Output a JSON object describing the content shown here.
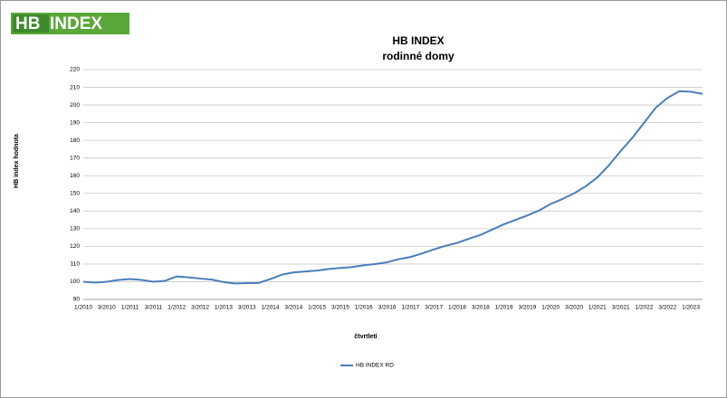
{
  "logo": {
    "left": "HB",
    "right": "INDEX"
  },
  "chart_data": {
    "type": "line",
    "title": "HB INDEX",
    "subtitle": "rodinné domy",
    "y_label": "HB index hodnota",
    "x_label": "čtvrtletí",
    "categories": [
      "1/2010",
      null,
      "3/2010",
      null,
      "1/2011",
      null,
      "3/2011",
      null,
      "1/2012",
      null,
      "3/2012",
      null,
      "1/2013",
      null,
      "3/2013",
      null,
      "1/2014",
      null,
      "3/2014",
      null,
      "1/2015",
      null,
      "3/2015",
      null,
      "1/2016",
      null,
      "3/2016",
      null,
      "1/2017",
      null,
      "3/2017",
      null,
      "1/2018",
      null,
      "3/2018",
      null,
      "1/2019",
      null,
      "3/2019",
      null,
      "1/2020",
      null,
      "3/2020",
      null,
      "1/2021",
      null,
      "3/2021",
      null,
      "1/2022",
      null,
      "3/2022",
      null,
      "1/2023",
      null
    ],
    "series": [
      {
        "name": "HB INDEX RD",
        "color": "#4a7ebb",
        "values": [
          100,
          99.5,
          100,
          101,
          101.5,
          101,
          100,
          100.5,
          103,
          102.5,
          101.8,
          101.2,
          99.8,
          99,
          99.2,
          99.3,
          101.5,
          104,
          105.3,
          105.8,
          106.3,
          107.2,
          107.8,
          108.3,
          109.3,
          110,
          111,
          112.8,
          114,
          116,
          118.3,
          120.3,
          122,
          124.3,
          126.5,
          129.5,
          132.5,
          135,
          137.5,
          140.3,
          144,
          146.8,
          150,
          154,
          159,
          166,
          174,
          181.5,
          190,
          198.5,
          204,
          207.8,
          207.5,
          206.3
        ]
      }
    ],
    "ylim": [
      90,
      220
    ],
    "yticks": [
      90,
      100,
      110,
      120,
      130,
      140,
      150,
      160,
      170,
      180,
      190,
      200,
      210,
      220
    ],
    "grid": true,
    "legend": "bottom"
  }
}
